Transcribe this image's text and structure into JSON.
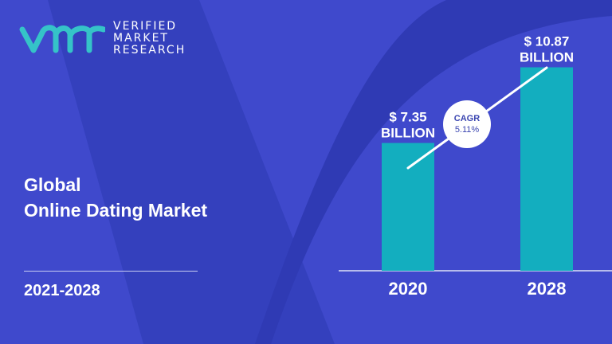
{
  "brand": {
    "logo_letters": "vmr",
    "line1": "VERIFIED",
    "line2": "MARKET",
    "line3": "RESEARCH",
    "accent": "#35c3c8"
  },
  "title": {
    "line1": "Global",
    "line2": "Online Dating Market"
  },
  "period": "2021-2028",
  "chart_data": {
    "type": "bar",
    "categories": [
      "2020",
      "2028"
    ],
    "values": [
      7.35,
      10.87
    ],
    "data_labels": [
      {
        "line1": "$ 7.35",
        "line2": "BILLION"
      },
      {
        "line1": "$ 10.87",
        "line2": "BILLION"
      }
    ],
    "annotation": {
      "line1": "CAGR",
      "line2": "5.11%"
    },
    "bar_color": "#13aebf",
    "grid": false
  }
}
